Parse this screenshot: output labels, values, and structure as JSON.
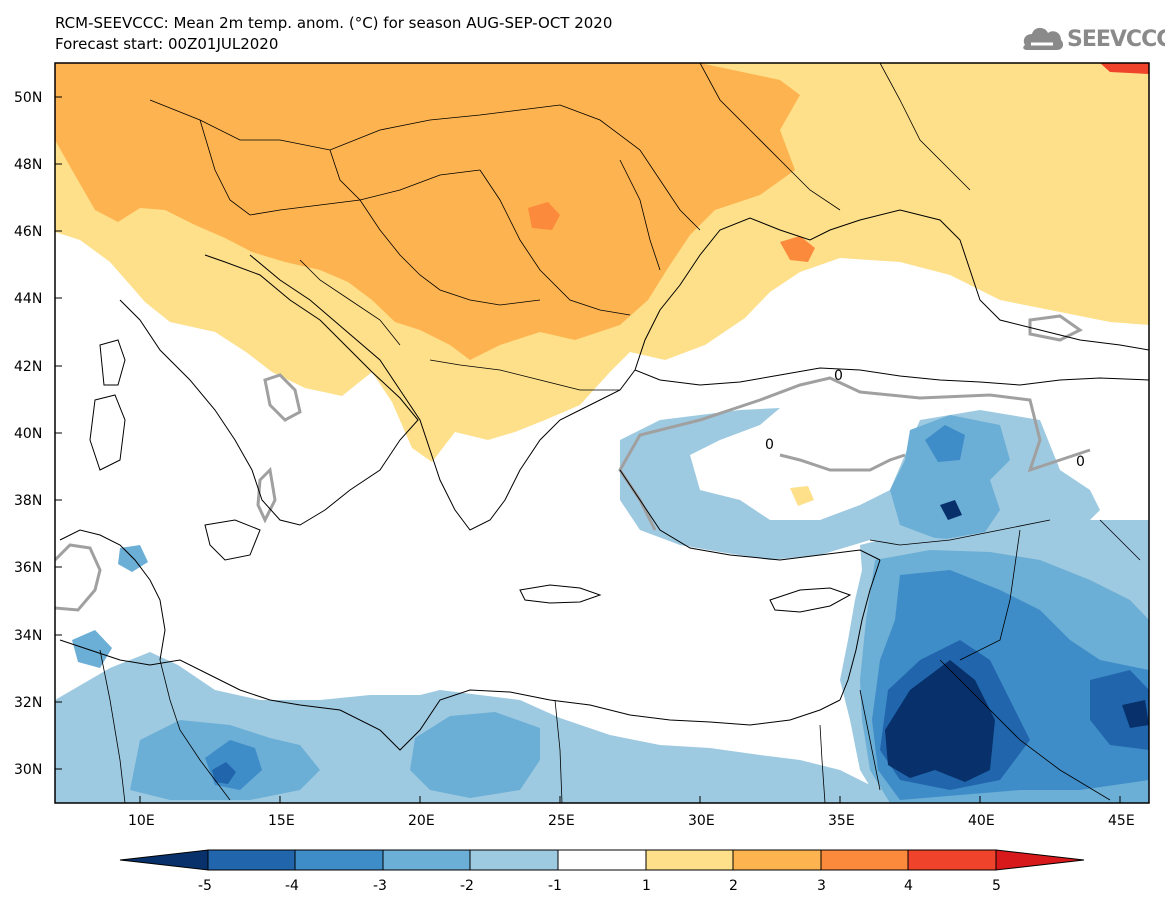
{
  "header": {
    "title_line1": "RCM-SEEVCCC: Mean 2m temp. anom. (°C) for season AUG-SEP-OCT 2020",
    "title_line2": "Forecast start: 00Z01JUL2020"
  },
  "logo": {
    "text": "SEEVCCC",
    "icon": "cloud-icon"
  },
  "map": {
    "lat_labels": [
      "50N",
      "48N",
      "46N",
      "44N",
      "42N",
      "40N",
      "38N",
      "36N",
      "34N",
      "32N",
      "30N"
    ],
    "lon_labels": [
      "10E",
      "15E",
      "20E",
      "25E",
      "30E",
      "35E",
      "40E",
      "45E"
    ],
    "contour_labels": [
      "0",
      "0",
      "0"
    ]
  },
  "colorbar": {
    "tick_labels": [
      "-5",
      "-4",
      "-3",
      "-2",
      "-1",
      "1",
      "2",
      "3",
      "4",
      "5"
    ],
    "colors": [
      "#08306b",
      "#2166ac",
      "#3f8dc8",
      "#6baed6",
      "#9ecae1",
      "#ffffff",
      "#fee08b",
      "#fdb350",
      "#fc8a3c",
      "#f0432b",
      "#d7191c"
    ]
  },
  "colors": {
    "warm_1": "#fee08b",
    "warm_2": "#fdb350",
    "warm_3": "#fc8a3c",
    "cool_1": "#9ecae1",
    "cool_2": "#6baed6",
    "cool_3": "#3f8dc8",
    "cool_4": "#2166ac",
    "cool_5": "#08306b"
  }
}
